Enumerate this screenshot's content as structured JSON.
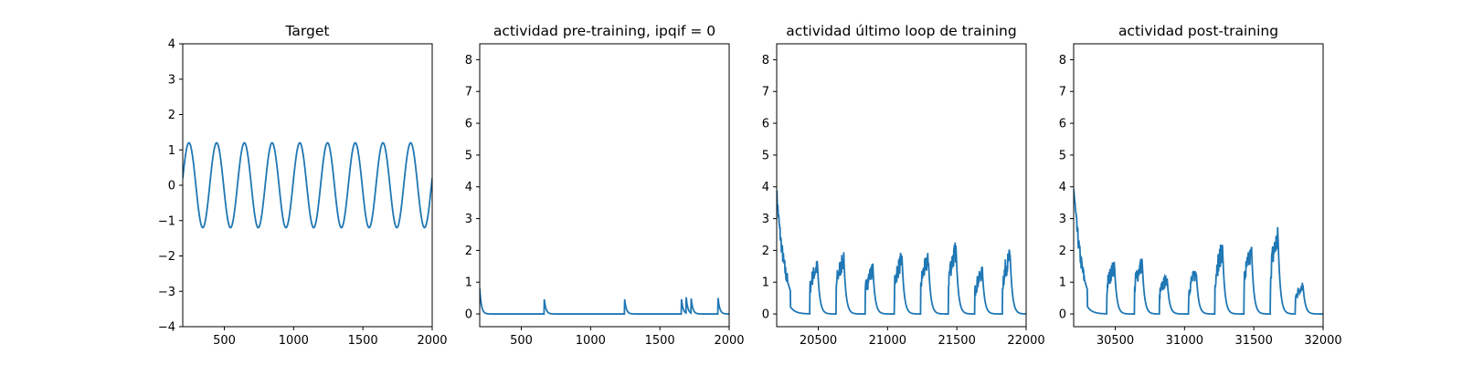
{
  "chart_data": [
    {
      "type": "line",
      "title": "Target",
      "xlabel": "",
      "ylabel": "",
      "xlim": [
        200,
        2000
      ],
      "ylim": [
        -4,
        4
      ],
      "xticks": [
        500,
        1000,
        1500,
        2000
      ],
      "yticks": [
        -4,
        -3,
        -2,
        -1,
        0,
        1,
        2,
        3,
        4
      ],
      "xtick_labels": [
        "500",
        "1000",
        "1500",
        "2000"
      ],
      "ytick_labels": [
        "−4",
        "−3",
        "−2",
        "−1",
        "0",
        "1",
        "2",
        "3",
        "4"
      ],
      "grid": false,
      "series_color": "#1f77b4",
      "series": [
        {
          "signal": "sine",
          "amplitude": 1.2,
          "period": 200,
          "x_start": 200,
          "y_at_start": 0.2
        }
      ]
    },
    {
      "type": "line",
      "title": "actividad pre-training, ipqif = 0",
      "xlabel": "",
      "ylabel": "",
      "xlim": [
        200,
        2000
      ],
      "ylim": [
        -0.4,
        8.5
      ],
      "xticks": [
        500,
        1000,
        1500,
        2000
      ],
      "yticks": [
        0,
        1,
        2,
        3,
        4,
        5,
        6,
        7,
        8
      ],
      "xtick_labels": [
        "500",
        "1000",
        "1500",
        "2000"
      ],
      "ytick_labels": [
        "0",
        "1",
        "2",
        "3",
        "4",
        "5",
        "6",
        "7",
        "8"
      ],
      "grid": false,
      "series_color": "#1f77b4",
      "series": [
        {
          "signal": "decaying spikes",
          "baseline": 0.0,
          "initial_value": 0.8,
          "spike_times": [
            665,
            1245,
            1655,
            1690,
            1725,
            1920
          ],
          "spike_heights": [
            0.5,
            0.5,
            0.5,
            0.5,
            0.5,
            0.5
          ]
        }
      ]
    },
    {
      "type": "line",
      "title": "actividad último loop de training",
      "xlabel": "",
      "ylabel": "",
      "xlim": [
        20200,
        22000
      ],
      "ylim": [
        -0.4,
        8.5
      ],
      "xticks": [
        20500,
        21000,
        21500,
        22000
      ],
      "yticks": [
        0,
        1,
        2,
        3,
        4,
        5,
        6,
        7,
        8
      ],
      "xtick_labels": [
        "20500",
        "21000",
        "21500",
        "22000"
      ],
      "ytick_labels": [
        "0",
        "1",
        "2",
        "3",
        "4",
        "5",
        "6",
        "7",
        "8"
      ],
      "grid": false,
      "series_color": "#1f77b4",
      "series": [
        {
          "signal": "bursts",
          "baseline": 0.0,
          "initial_value": 3.8,
          "burst_starts": [
            20440,
            20630,
            20840,
            21050,
            21240,
            21440,
            21630,
            21830
          ],
          "burst_peaks": [
            1.5,
            1.7,
            1.4,
            1.7,
            1.7,
            2.0,
            1.3,
            1.8
          ]
        }
      ]
    },
    {
      "type": "line",
      "title": "actividad post-training",
      "xlabel": "",
      "ylabel": "",
      "xlim": [
        30200,
        32000
      ],
      "ylim": [
        -0.4,
        8.5
      ],
      "xticks": [
        30500,
        31000,
        31500,
        32000
      ],
      "yticks": [
        0,
        1,
        2,
        3,
        4,
        5,
        6,
        7,
        8
      ],
      "xtick_labels": [
        "30500",
        "31000",
        "31500",
        "32000"
      ],
      "ytick_labels": [
        "0",
        "1",
        "2",
        "3",
        "4",
        "5",
        "6",
        "7",
        "8"
      ],
      "grid": false,
      "series_color": "#1f77b4",
      "series": [
        {
          "signal": "bursts",
          "baseline": 0.0,
          "initial_value": 4.0,
          "burst_starts": [
            30440,
            30640,
            30820,
            31030,
            31220,
            31430,
            31620,
            31800
          ],
          "burst_peaks": [
            1.5,
            1.6,
            1.1,
            1.3,
            2.0,
            1.9,
            2.4,
            0.9
          ]
        }
      ]
    }
  ]
}
